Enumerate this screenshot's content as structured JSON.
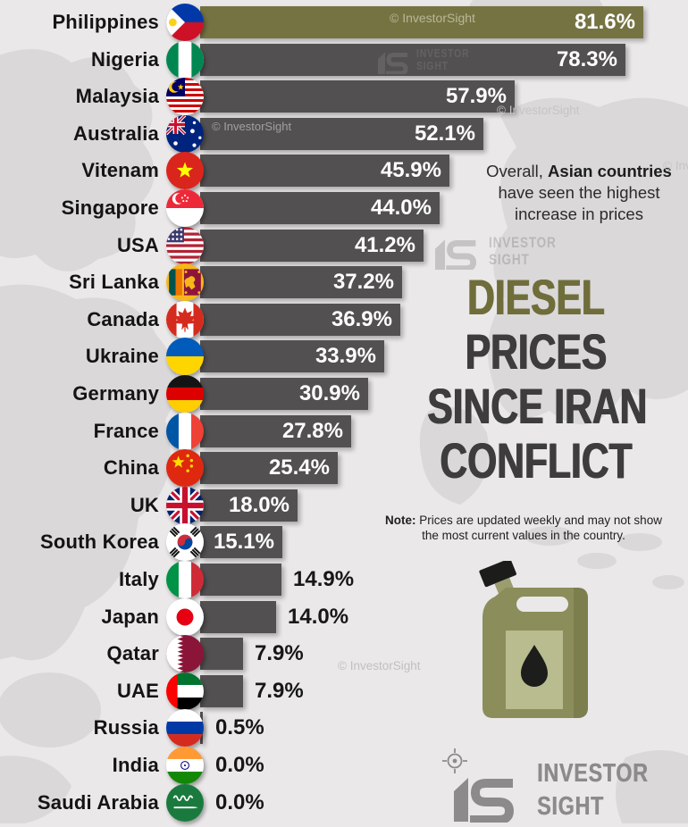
{
  "title": {
    "lines": [
      "DIESEL",
      "PRICES",
      "SINCE IRAN",
      "CONFLICT"
    ]
  },
  "subtitle": {
    "line1_normal": "Overall, ",
    "line1_bold": "Asian countries",
    "line2": "have seen the highest",
    "line3": "increase in prices"
  },
  "note": {
    "label": "Note:",
    "line1": " Prices are updated weekly and may not show",
    "line2": "the most current values in the country."
  },
  "watermarks": {
    "copyright": "© InvestorSight",
    "brand_line1": "INVESTOR",
    "brand_line2": "SIGHT"
  },
  "logo": {
    "line1": "INVESTOR",
    "line2": "SIGHT"
  },
  "colors": {
    "background": "#eae8e9",
    "map": "#dad8d9",
    "bar": "#525051",
    "highlight_bar": "#757342",
    "title_accent": "#6f6e3b",
    "title_dark": "#3e3d3d",
    "value_inside": "#ffffff",
    "value_outside": "#171717",
    "logo_gray": "#8d8a8b"
  },
  "chart_data": {
    "type": "bar",
    "orientation": "horizontal",
    "title": "DIESEL PRICES SINCE IRAN CONFLICT",
    "subtitle": "Overall, Asian countries have seen the highest increase in prices",
    "note": "Note: Prices are updated weekly and may not show the most current values in the country.",
    "unit": "%",
    "xlim": [
      0,
      85
    ],
    "grid": false,
    "legend": false,
    "value_labels_shown": true,
    "highlight_index": 0,
    "categories": [
      "Philippines",
      "Nigeria",
      "Malaysia",
      "Australia",
      "Vitenam",
      "Singapore",
      "USA",
      "Sri Lanka",
      "Canada",
      "Ukraine",
      "Germany",
      "France",
      "China",
      "UK",
      "South Korea",
      "Italy",
      "Japan",
      "Qatar",
      "UAE",
      "Russia",
      "India",
      "Saudi Arabia"
    ],
    "values": [
      81.6,
      78.3,
      57.9,
      52.1,
      45.9,
      44.0,
      41.2,
      37.2,
      36.9,
      33.9,
      30.9,
      27.8,
      25.4,
      18.0,
      15.1,
      14.9,
      14.0,
      7.9,
      7.9,
      0.5,
      0.0,
      0.0
    ],
    "flag_codes": [
      "ph",
      "ng",
      "my",
      "au",
      "vn",
      "sg",
      "us",
      "lk",
      "ca",
      "ua",
      "de",
      "fr",
      "cn",
      "gb",
      "kr",
      "it",
      "jp",
      "qa",
      "ae",
      "ru",
      "in",
      "sa"
    ]
  }
}
